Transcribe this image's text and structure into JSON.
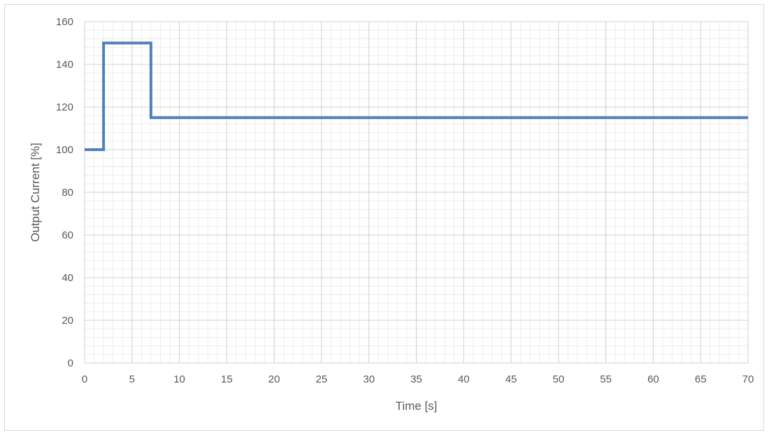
{
  "chart_data": {
    "type": "line",
    "xlabel": "Time [s]",
    "ylabel": "Output Current [%]",
    "xlim": [
      0,
      70
    ],
    "ylim": [
      0,
      160
    ],
    "x_ticks": [
      0,
      5,
      10,
      15,
      20,
      25,
      30,
      35,
      40,
      45,
      50,
      55,
      60,
      65,
      70
    ],
    "y_ticks": [
      0,
      20,
      40,
      60,
      80,
      100,
      120,
      140,
      160
    ],
    "x_minor_step": 1,
    "y_minor_step": 4,
    "grid": true,
    "legend": "none",
    "series": [
      {
        "color": "#4f81bd",
        "x": [
          0,
          2,
          2,
          7,
          7,
          70
        ],
        "y": [
          100,
          100,
          150,
          150,
          115,
          115
        ]
      }
    ]
  }
}
